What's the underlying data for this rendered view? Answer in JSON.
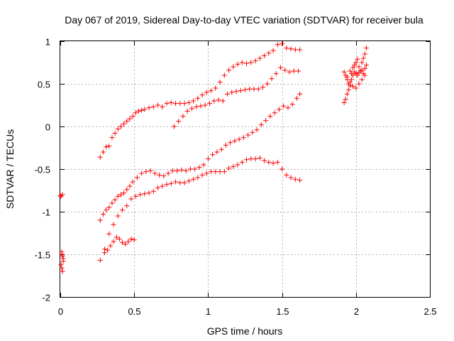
{
  "chart_data": {
    "type": "scatter",
    "title": "Day 067 of 2019, Sidereal Day-to-day VTEC variation (SDTVAR) for receiver bula",
    "xlabel": "GPS time / hours",
    "ylabel": "SDTVAR / TECUs",
    "xlim": [
      0,
      2.5
    ],
    "ylim": [
      -2,
      1
    ],
    "xticks": [
      "0",
      "0.5",
      "1",
      "1.5",
      "2",
      "2.5"
    ],
    "yticks": [
      "-2",
      "-1.5",
      "-1",
      "-0.5",
      "0",
      "0.5",
      "1"
    ],
    "grid": true,
    "marker": "plus",
    "color": "#ff0000",
    "series": [
      {
        "x": [
          0.27,
          0.29,
          0.31,
          0.33,
          0.35,
          0.37,
          0.39,
          0.41,
          0.43,
          0.45,
          0.47,
          0.49,
          0.51,
          0.53,
          0.55,
          0.57,
          0.6,
          0.63,
          0.66,
          0.69,
          0.72,
          0.75,
          0.78,
          0.81,
          0.84,
          0.87,
          0.9,
          0.93,
          0.96,
          0.99,
          1.02,
          1.05,
          1.08,
          1.11,
          1.14,
          1.17,
          1.2,
          1.23,
          1.26,
          1.29,
          1.32,
          1.35,
          1.38,
          1.41,
          1.44,
          1.47,
          1.5,
          1.53,
          1.56,
          1.59,
          1.62
        ],
        "y": [
          -0.36,
          -0.3,
          -0.24,
          -0.23,
          -0.13,
          -0.08,
          -0.03,
          0,
          0.03,
          0.06,
          0.09,
          0.12,
          0.16,
          0.18,
          0.19,
          0.2,
          0.22,
          0.23,
          0.25,
          0.23,
          0.27,
          0.28,
          0.27,
          0.27,
          0.27,
          0.28,
          0.3,
          0.33,
          0.37,
          0.4,
          0.42,
          0.45,
          0.52,
          0.6,
          0.66,
          0.7,
          0.73,
          0.75,
          0.74,
          0.75,
          0.77,
          0.8,
          0.83,
          0.86,
          0.89,
          0.96,
          0.97,
          0.92,
          0.91,
          0.9,
          0.9
        ]
      },
      {
        "x": [
          0.77,
          0.8,
          0.83,
          0.86,
          0.89,
          0.92,
          0.95,
          0.98,
          1.01,
          1.04,
          1.07,
          1.1,
          1.13,
          1.16,
          1.19,
          1.22,
          1.25,
          1.28,
          1.31,
          1.34,
          1.37,
          1.4,
          1.43,
          1.46,
          1.49,
          1.52,
          1.55,
          1.58,
          1.61
        ],
        "y": [
          0,
          0.06,
          0.12,
          0.18,
          0.21,
          0.23,
          0.24,
          0.25,
          0.27,
          0.3,
          0.31,
          0.3,
          0.38,
          0.4,
          0.41,
          0.42,
          0.43,
          0.44,
          0.44,
          0.44,
          0.46,
          0.5,
          0.56,
          0.62,
          0.69,
          0.66,
          0.64,
          0.65,
          0.65
        ]
      },
      {
        "x": [
          0.27,
          0.29,
          0.31,
          0.33,
          0.35,
          0.37,
          0.39,
          0.41,
          0.43,
          0.45,
          0.47,
          0.49,
          0.52,
          0.55,
          0.58,
          0.61,
          0.64,
          0.67,
          0.7,
          0.73,
          0.76,
          0.79,
          0.82,
          0.85,
          0.88,
          0.91,
          0.94,
          0.97,
          1,
          1.03,
          1.06,
          1.09,
          1.12,
          1.15,
          1.18,
          1.21,
          1.24,
          1.27,
          1.3,
          1.33,
          1.36,
          1.39,
          1.42,
          1.45,
          1.48,
          1.51,
          1.54,
          1.57,
          1.6,
          1.62
        ],
        "y": [
          -1.1,
          -1.03,
          -0.98,
          -0.95,
          -0.9,
          -0.86,
          -0.82,
          -0.8,
          -0.78,
          -0.74,
          -0.7,
          -0.65,
          -0.6,
          -0.55,
          -0.53,
          -0.52,
          -0.55,
          -0.57,
          -0.58,
          -0.55,
          -0.52,
          -0.52,
          -0.51,
          -0.52,
          -0.5,
          -0.5,
          -0.48,
          -0.45,
          -0.38,
          -0.33,
          -0.3,
          -0.27,
          -0.22,
          -0.19,
          -0.17,
          -0.15,
          -0.13,
          -0.1,
          -0.07,
          -0.04,
          0.02,
          0.07,
          0.12,
          0.16,
          0.2,
          0.24,
          0.22,
          0.26,
          0.33,
          0.38
        ]
      },
      {
        "x": [
          0.27,
          0.3,
          0.33,
          0.36,
          0.39,
          0.42,
          0.45,
          0.48,
          0.51,
          0.54,
          0.57,
          0.6,
          0.63,
          0.66,
          0.69,
          0.72,
          0.75,
          0.78,
          0.81,
          0.84,
          0.87,
          0.9,
          0.93,
          0.96,
          0.99,
          1.02,
          1.05,
          1.08,
          1.11,
          1.14,
          1.17,
          1.2,
          1.23,
          1.26,
          1.29,
          1.32,
          1.35,
          1.38,
          1.41,
          1.44,
          1.47,
          1.5,
          1.53,
          1.56,
          1.59,
          1.62
        ],
        "y": [
          -1.57,
          -1.44,
          -1.26,
          -1.15,
          -1.05,
          -0.98,
          -0.93,
          -0.85,
          -0.82,
          -0.8,
          -0.79,
          -0.78,
          -0.76,
          -0.72,
          -0.7,
          -0.68,
          -0.67,
          -0.65,
          -0.66,
          -0.66,
          -0.64,
          -0.62,
          -0.6,
          -0.57,
          -0.55,
          -0.53,
          -0.53,
          -0.53,
          -0.53,
          -0.49,
          -0.47,
          -0.45,
          -0.42,
          -0.39,
          -0.38,
          -0.38,
          -0.37,
          -0.4,
          -0.42,
          -0.43,
          -0.42,
          -0.5,
          -0.57,
          -0.6,
          -0.62,
          -0.63
        ]
      },
      {
        "x": [
          0.3,
          0.32,
          0.34,
          0.36,
          0.38,
          0.4,
          0.42,
          0.44,
          0.46,
          0.48,
          0.5
        ],
        "y": [
          -1.48,
          -1.45,
          -1.4,
          -1.35,
          -1.3,
          -1.32,
          -1.36,
          -1.38,
          -1.35,
          -1.32,
          -1.33
        ]
      },
      {
        "x": [
          0,
          0.005,
          0.01,
          0.015,
          0.02,
          0.005,
          0.01,
          0.015,
          0.02,
          0.01,
          0.015
        ],
        "y": [
          -0.81,
          -0.82,
          -1.47,
          -1.52,
          -1.58,
          -1.62,
          -1.66,
          -1.7,
          -1.55,
          -1.5,
          -0.8
        ]
      },
      {
        "x": [
          1.92,
          1.93,
          1.94,
          1.95,
          1.96,
          1.97,
          1.98,
          1.99,
          2,
          2.01,
          2.02,
          2.03,
          2.04,
          2.05,
          2.06,
          2.07
        ],
        "y": [
          0.64,
          0.6,
          0.55,
          0.5,
          0.65,
          0.62,
          0.69,
          0.72,
          0.75,
          0.79,
          0.7,
          0.65,
          0.75,
          0.8,
          0.85,
          0.92
        ]
      },
      {
        "x": [
          1.92,
          1.93,
          1.94,
          1.95,
          1.96,
          1.97,
          1.98,
          1.99,
          2,
          2.01,
          2.02,
          2.03,
          2.04,
          2.05,
          2.06,
          2.07
        ],
        "y": [
          0.28,
          0.32,
          0.38,
          0.43,
          0.48,
          0.55,
          0.6,
          0.64,
          0.62,
          0.6,
          0.63,
          0.65,
          0.66,
          0.62,
          0.68,
          0.72
        ]
      },
      {
        "x": [
          1.94,
          1.96,
          1.98,
          2,
          2.02,
          2.04,
          2.06
        ],
        "y": [
          0.58,
          0.52,
          0.47,
          0.45,
          0.5,
          0.55,
          0.6
        ]
      }
    ]
  }
}
